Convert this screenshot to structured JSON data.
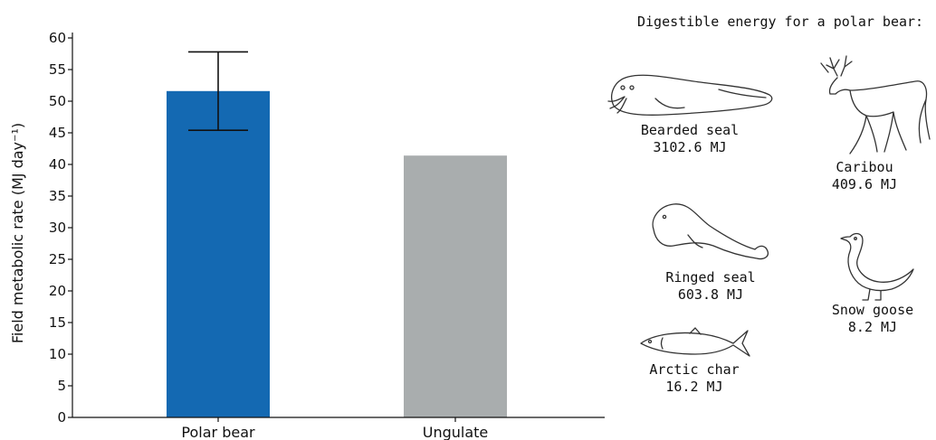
{
  "chart_data": {
    "type": "bar",
    "categories": [
      "Polar bear",
      "Ungulate"
    ],
    "values": [
      51.6,
      41.4
    ],
    "error": {
      "category": "Polar bear",
      "low": 45.4,
      "high": 57.8
    },
    "ylabel": "Field metabolic rate (MJ day⁻¹)",
    "xlabel": "",
    "ylim": [
      0,
      60
    ],
    "yticks": [
      0,
      5,
      10,
      15,
      20,
      25,
      30,
      35,
      40,
      45,
      50,
      55,
      60
    ],
    "colors": [
      "#1469b2",
      "#a9adae"
    ],
    "grid": false
  },
  "panel": {
    "title": "Digestible energy for a polar bear:",
    "animals": [
      {
        "name": "Bearded seal",
        "energy": "3102.6 MJ",
        "icon": "bearded-seal-icon"
      },
      {
        "name": "Caribou",
        "energy": "409.6 MJ",
        "icon": "caribou-icon"
      },
      {
        "name": "Ringed seal",
        "energy": "603.8 MJ",
        "icon": "ringed-seal-icon"
      },
      {
        "name": "Snow goose",
        "energy": "8.2 MJ",
        "icon": "snow-goose-icon"
      },
      {
        "name": "Arctic char",
        "energy": "16.2 MJ",
        "icon": "arctic-char-icon"
      }
    ]
  }
}
